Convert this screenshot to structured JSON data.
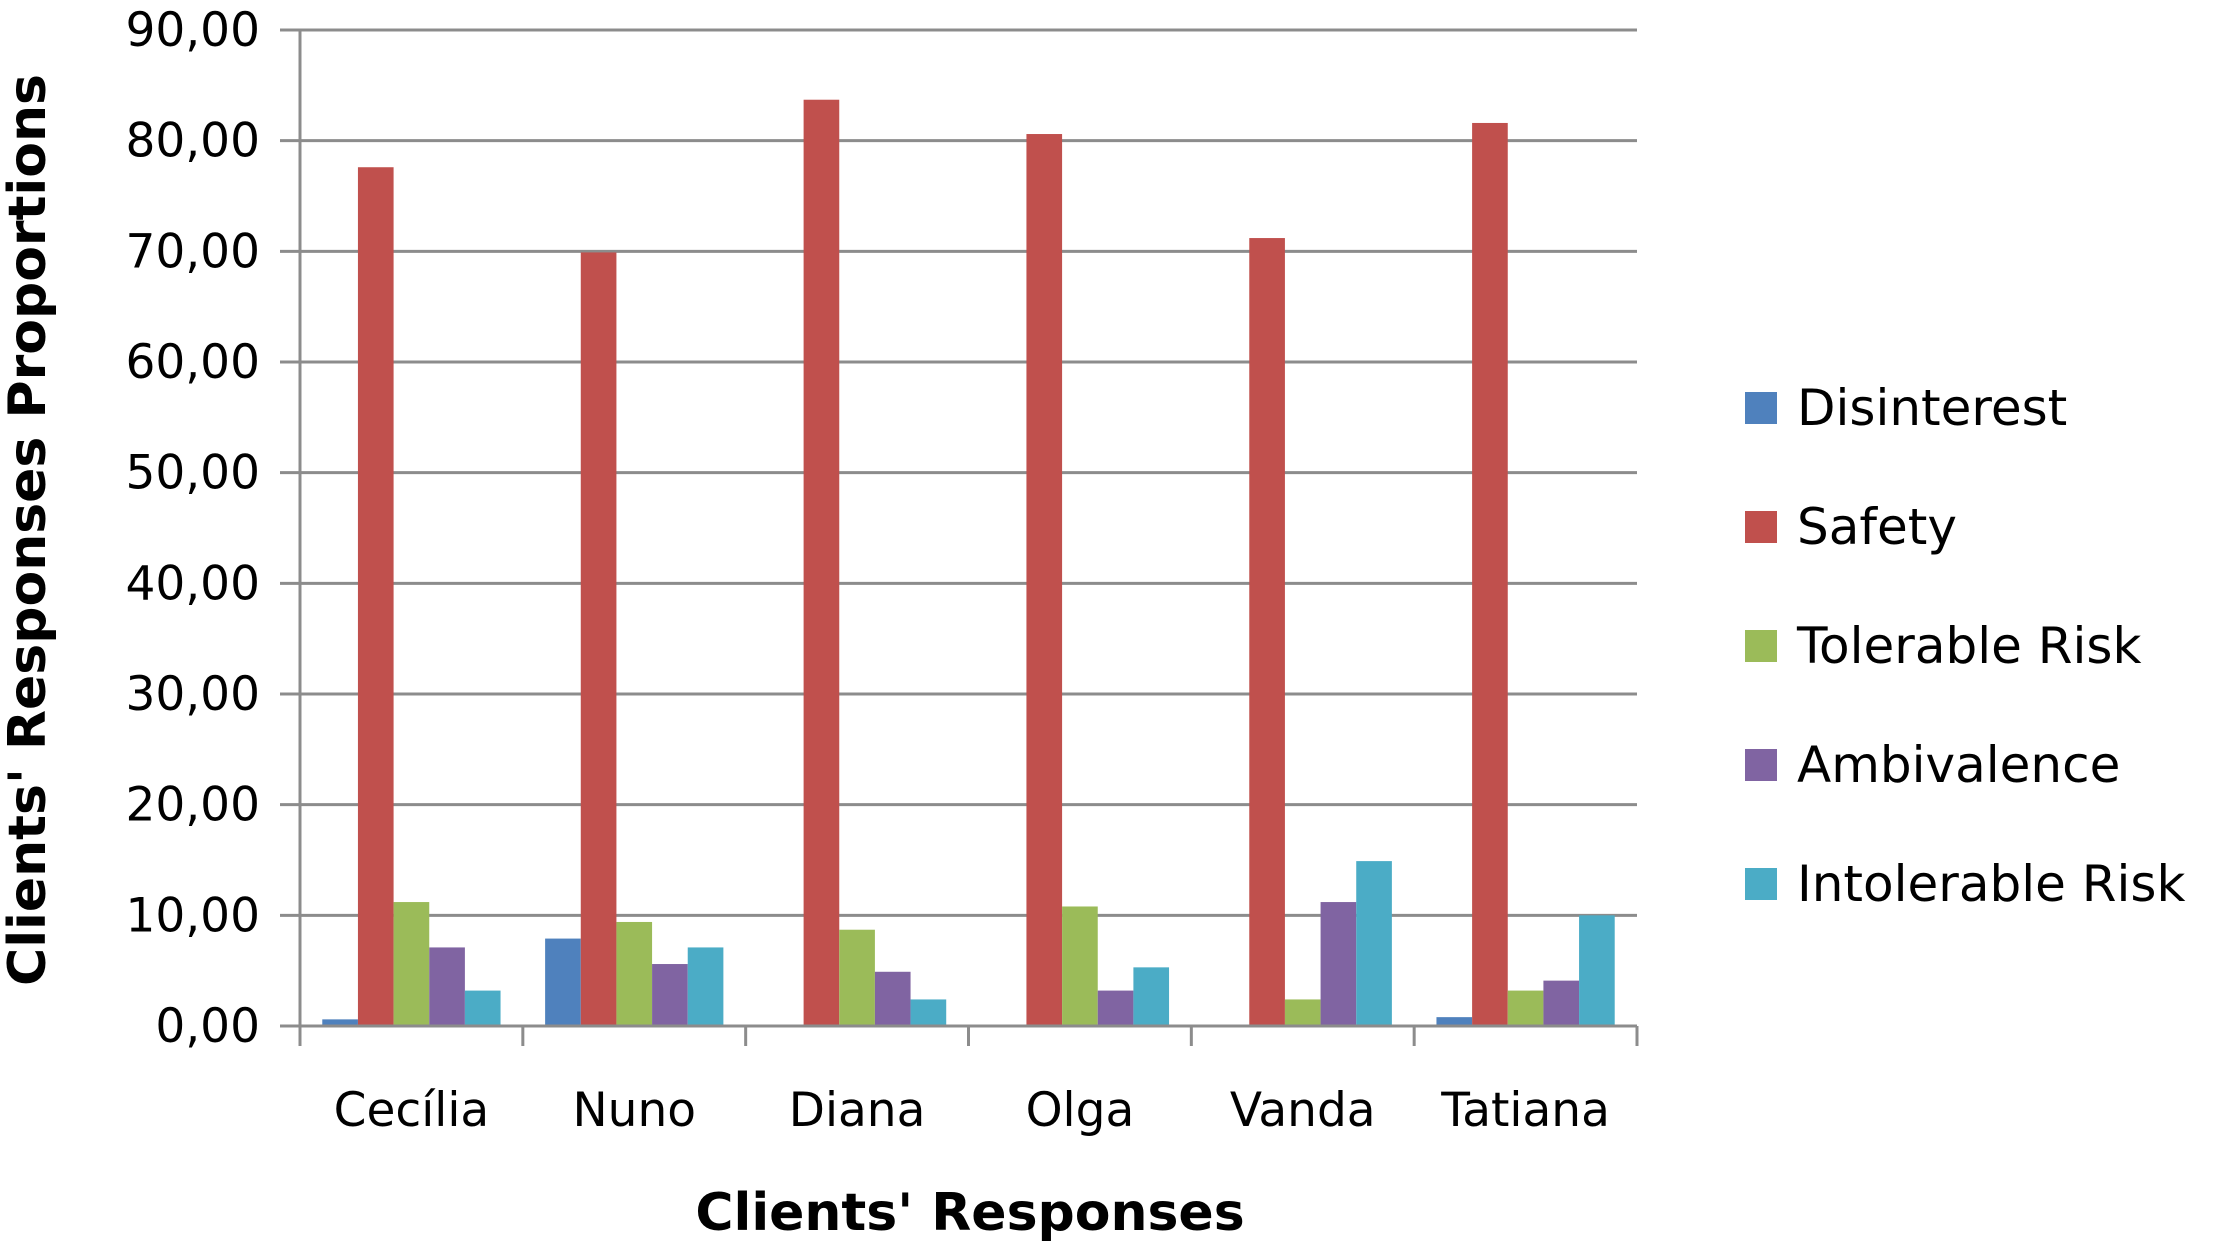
{
  "chart_data": {
    "type": "bar",
    "title": "",
    "xlabel": "Clients' Responses",
    "ylabel": "Clients' Responses Proportions",
    "ylim": [
      0,
      90
    ],
    "yticks": [
      "0,00",
      "10,00",
      "20,00",
      "30,00",
      "40,00",
      "50,00",
      "60,00",
      "70,00",
      "80,00",
      "90,00"
    ],
    "grid": true,
    "legend_position": "right",
    "categories": [
      "Cecília",
      "Nuno",
      "Diana",
      "Olga",
      "Vanda",
      "Tatiana"
    ],
    "series": [
      {
        "name": "Disinterest",
        "color": "#4F81BD",
        "values": [
          0.6,
          7.9,
          0.0,
          0.0,
          0.0,
          0.8
        ]
      },
      {
        "name": "Safety",
        "color": "#C0504D",
        "values": [
          77.6,
          69.9,
          83.7,
          80.6,
          71.2,
          81.6
        ]
      },
      {
        "name": "Tolerable Risk",
        "color": "#9BBB59",
        "values": [
          11.2,
          9.4,
          8.7,
          10.8,
          2.4,
          3.2
        ]
      },
      {
        "name": "Ambivalence",
        "color": "#8064A2",
        "values": [
          7.1,
          5.6,
          4.9,
          3.2,
          11.2,
          4.1
        ]
      },
      {
        "name": "Intolerable Risk",
        "color": "#4BACC6",
        "values": [
          3.2,
          7.1,
          2.4,
          5.3,
          14.9,
          10.0
        ]
      }
    ]
  }
}
